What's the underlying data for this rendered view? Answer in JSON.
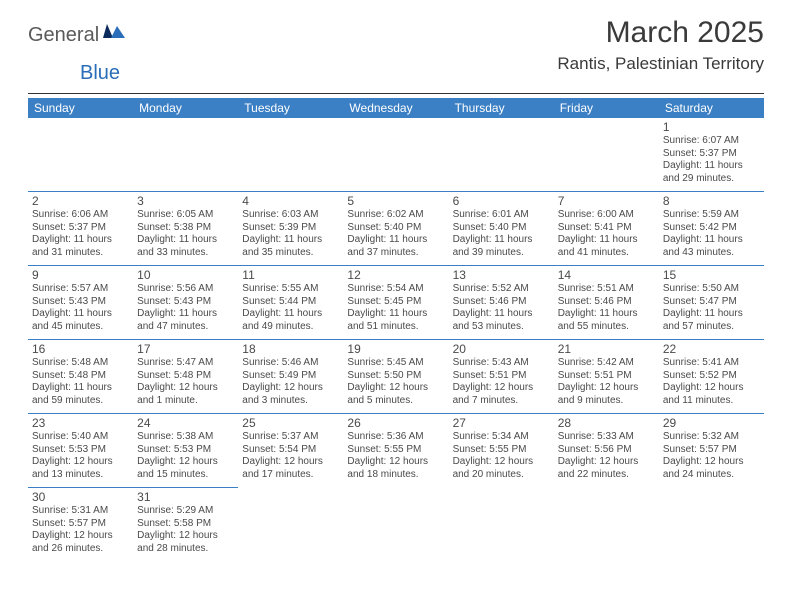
{
  "logo": {
    "general": "General",
    "blue": "Blue"
  },
  "title": "March 2025",
  "location": "Rantis, Palestinian Territory",
  "colors": {
    "header_bg": "#3b7fc4",
    "header_text": "#ffffff",
    "body_text": "#4a4a4a",
    "cell_border": "#3b7fc4",
    "logo_blue": "#2a6db8",
    "logo_gray": "#5a5a5a",
    "page_bg": "#ffffff"
  },
  "fonts": {
    "family": "Arial",
    "title_size_pt": 22,
    "location_size_pt": 13,
    "header_size_pt": 9,
    "daynum_size_pt": 9,
    "details_size_pt": 7.5
  },
  "weekday_labels": [
    "Sunday",
    "Monday",
    "Tuesday",
    "Wednesday",
    "Thursday",
    "Friday",
    "Saturday"
  ],
  "layout": {
    "columns": 7,
    "rows": 6,
    "first_day_column": 6,
    "last_day": 31
  },
  "days": {
    "1": {
      "sunrise": "6:07 AM",
      "sunset": "5:37 PM",
      "daylight": "11 hours and 29 minutes."
    },
    "2": {
      "sunrise": "6:06 AM",
      "sunset": "5:37 PM",
      "daylight": "11 hours and 31 minutes."
    },
    "3": {
      "sunrise": "6:05 AM",
      "sunset": "5:38 PM",
      "daylight": "11 hours and 33 minutes."
    },
    "4": {
      "sunrise": "6:03 AM",
      "sunset": "5:39 PM",
      "daylight": "11 hours and 35 minutes."
    },
    "5": {
      "sunrise": "6:02 AM",
      "sunset": "5:40 PM",
      "daylight": "11 hours and 37 minutes."
    },
    "6": {
      "sunrise": "6:01 AM",
      "sunset": "5:40 PM",
      "daylight": "11 hours and 39 minutes."
    },
    "7": {
      "sunrise": "6:00 AM",
      "sunset": "5:41 PM",
      "daylight": "11 hours and 41 minutes."
    },
    "8": {
      "sunrise": "5:59 AM",
      "sunset": "5:42 PM",
      "daylight": "11 hours and 43 minutes."
    },
    "9": {
      "sunrise": "5:57 AM",
      "sunset": "5:43 PM",
      "daylight": "11 hours and 45 minutes."
    },
    "10": {
      "sunrise": "5:56 AM",
      "sunset": "5:43 PM",
      "daylight": "11 hours and 47 minutes."
    },
    "11": {
      "sunrise": "5:55 AM",
      "sunset": "5:44 PM",
      "daylight": "11 hours and 49 minutes."
    },
    "12": {
      "sunrise": "5:54 AM",
      "sunset": "5:45 PM",
      "daylight": "11 hours and 51 minutes."
    },
    "13": {
      "sunrise": "5:52 AM",
      "sunset": "5:46 PM",
      "daylight": "11 hours and 53 minutes."
    },
    "14": {
      "sunrise": "5:51 AM",
      "sunset": "5:46 PM",
      "daylight": "11 hours and 55 minutes."
    },
    "15": {
      "sunrise": "5:50 AM",
      "sunset": "5:47 PM",
      "daylight": "11 hours and 57 minutes."
    },
    "16": {
      "sunrise": "5:48 AM",
      "sunset": "5:48 PM",
      "daylight": "11 hours and 59 minutes."
    },
    "17": {
      "sunrise": "5:47 AM",
      "sunset": "5:48 PM",
      "daylight": "12 hours and 1 minute."
    },
    "18": {
      "sunrise": "5:46 AM",
      "sunset": "5:49 PM",
      "daylight": "12 hours and 3 minutes."
    },
    "19": {
      "sunrise": "5:45 AM",
      "sunset": "5:50 PM",
      "daylight": "12 hours and 5 minutes."
    },
    "20": {
      "sunrise": "5:43 AM",
      "sunset": "5:51 PM",
      "daylight": "12 hours and 7 minutes."
    },
    "21": {
      "sunrise": "5:42 AM",
      "sunset": "5:51 PM",
      "daylight": "12 hours and 9 minutes."
    },
    "22": {
      "sunrise": "5:41 AM",
      "sunset": "5:52 PM",
      "daylight": "12 hours and 11 minutes."
    },
    "23": {
      "sunrise": "5:40 AM",
      "sunset": "5:53 PM",
      "daylight": "12 hours and 13 minutes."
    },
    "24": {
      "sunrise": "5:38 AM",
      "sunset": "5:53 PM",
      "daylight": "12 hours and 15 minutes."
    },
    "25": {
      "sunrise": "5:37 AM",
      "sunset": "5:54 PM",
      "daylight": "12 hours and 17 minutes."
    },
    "26": {
      "sunrise": "5:36 AM",
      "sunset": "5:55 PM",
      "daylight": "12 hours and 18 minutes."
    },
    "27": {
      "sunrise": "5:34 AM",
      "sunset": "5:55 PM",
      "daylight": "12 hours and 20 minutes."
    },
    "28": {
      "sunrise": "5:33 AM",
      "sunset": "5:56 PM",
      "daylight": "12 hours and 22 minutes."
    },
    "29": {
      "sunrise": "5:32 AM",
      "sunset": "5:57 PM",
      "daylight": "12 hours and 24 minutes."
    },
    "30": {
      "sunrise": "5:31 AM",
      "sunset": "5:57 PM",
      "daylight": "12 hours and 26 minutes."
    },
    "31": {
      "sunrise": "5:29 AM",
      "sunset": "5:58 PM",
      "daylight": "12 hours and 28 minutes."
    }
  },
  "labels": {
    "sunrise_prefix": "Sunrise: ",
    "sunset_prefix": "Sunset: ",
    "daylight_prefix": "Daylight: "
  }
}
